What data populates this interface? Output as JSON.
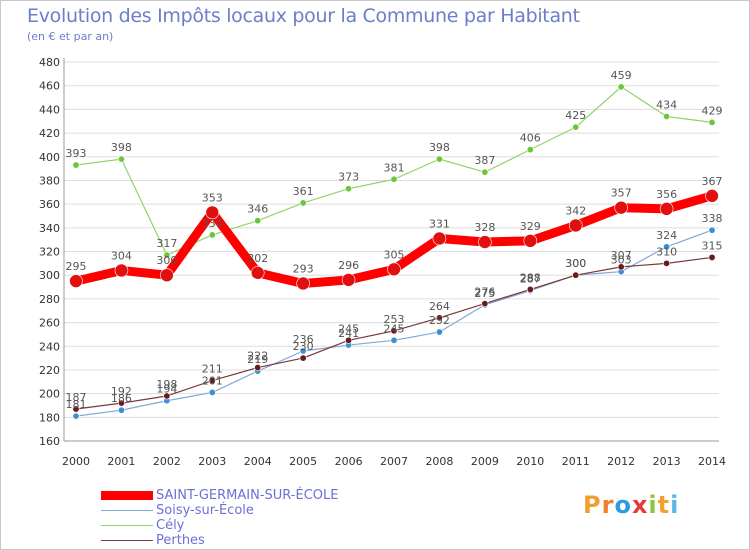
{
  "header": {
    "title": "Evolution des Impôts locaux pour la Commune par Habitant",
    "subtitle": "(en € et par an)"
  },
  "logo": {
    "letters": [
      "P",
      "r",
      "o",
      "x",
      "i",
      "t",
      "i"
    ],
    "colors": [
      "#f0a030",
      "#f07d2a",
      "#2f9ae0",
      "#e43b3b",
      "#8cc63f",
      "#f0a030",
      "#5ab7e6"
    ]
  },
  "chart_data": {
    "type": "line",
    "title": "Evolution des Impôts locaux pour la Commune par Habitant",
    "subtitle": "(en € et par an)",
    "xlabel": "",
    "ylabel": "",
    "x": [
      "2000",
      "2001",
      "2002",
      "2003",
      "2004",
      "2005",
      "2006",
      "2007",
      "2008",
      "2009",
      "2010",
      "2011",
      "2012",
      "2013",
      "2014"
    ],
    "ylim": [
      160,
      480
    ],
    "yticks": [
      160,
      180,
      200,
      220,
      240,
      260,
      280,
      300,
      320,
      340,
      360,
      380,
      400,
      420,
      440,
      460,
      480
    ],
    "grid": "horizontal",
    "legend_position": "bottom-left",
    "series": [
      {
        "name": "SAINT-GERMAIN-SUR-ÉCOLE",
        "color": "#ff0000",
        "marker_color": "#e01010",
        "values": [
          295,
          304,
          300,
          353,
          302,
          293,
          296,
          305,
          331,
          328,
          329,
          342,
          357,
          356,
          367
        ]
      },
      {
        "name": "Soisy-sur-École",
        "color": "#7fa8d8",
        "marker_color": "#3f8fd6",
        "values": [
          181,
          186,
          194,
          201,
          219,
          236,
          241,
          245,
          252,
          275,
          287,
          300,
          303,
          324,
          338
        ]
      },
      {
        "name": "Cély",
        "color": "#8fd46a",
        "marker_color": "#6cc63b",
        "values": [
          393,
          398,
          317,
          334,
          346,
          361,
          373,
          381,
          398,
          387,
          406,
          425,
          459,
          434,
          429
        ]
      },
      {
        "name": "Perthes",
        "color": "#7a3838",
        "marker_color": "#6a1a1a",
        "values": [
          187,
          192,
          198,
          211,
          222,
          230,
          245,
          253,
          264,
          276,
          288,
          300,
          307,
          310,
          315
        ]
      }
    ]
  }
}
